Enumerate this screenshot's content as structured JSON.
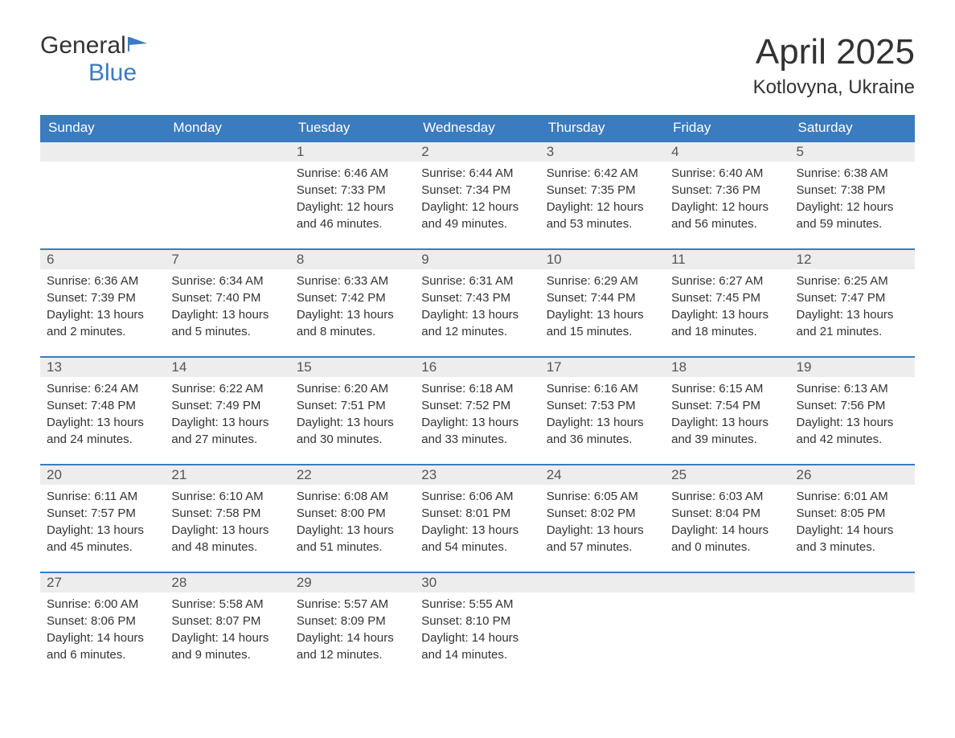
{
  "logo": {
    "text_general": "General",
    "text_blue": "Blue",
    "icon_color": "#3b7bbf"
  },
  "title": "April 2025",
  "location": "Kotlovyna, Ukraine",
  "header_bg_color": "#3b7bbf",
  "header_text_color": "#ffffff",
  "day_number_bg": "#ededed",
  "border_color": "#3b7bbf",
  "days_of_week": [
    "Sunday",
    "Monday",
    "Tuesday",
    "Wednesday",
    "Thursday",
    "Friday",
    "Saturday"
  ],
  "weeks": [
    [
      {
        "empty": true
      },
      {
        "empty": true
      },
      {
        "day": "1",
        "sunrise": "Sunrise: 6:46 AM",
        "sunset": "Sunset: 7:33 PM",
        "daylight1": "Daylight: 12 hours",
        "daylight2": "and 46 minutes."
      },
      {
        "day": "2",
        "sunrise": "Sunrise: 6:44 AM",
        "sunset": "Sunset: 7:34 PM",
        "daylight1": "Daylight: 12 hours",
        "daylight2": "and 49 minutes."
      },
      {
        "day": "3",
        "sunrise": "Sunrise: 6:42 AM",
        "sunset": "Sunset: 7:35 PM",
        "daylight1": "Daylight: 12 hours",
        "daylight2": "and 53 minutes."
      },
      {
        "day": "4",
        "sunrise": "Sunrise: 6:40 AM",
        "sunset": "Sunset: 7:36 PM",
        "daylight1": "Daylight: 12 hours",
        "daylight2": "and 56 minutes."
      },
      {
        "day": "5",
        "sunrise": "Sunrise: 6:38 AM",
        "sunset": "Sunset: 7:38 PM",
        "daylight1": "Daylight: 12 hours",
        "daylight2": "and 59 minutes."
      }
    ],
    [
      {
        "day": "6",
        "sunrise": "Sunrise: 6:36 AM",
        "sunset": "Sunset: 7:39 PM",
        "daylight1": "Daylight: 13 hours",
        "daylight2": "and 2 minutes."
      },
      {
        "day": "7",
        "sunrise": "Sunrise: 6:34 AM",
        "sunset": "Sunset: 7:40 PM",
        "daylight1": "Daylight: 13 hours",
        "daylight2": "and 5 minutes."
      },
      {
        "day": "8",
        "sunrise": "Sunrise: 6:33 AM",
        "sunset": "Sunset: 7:42 PM",
        "daylight1": "Daylight: 13 hours",
        "daylight2": "and 8 minutes."
      },
      {
        "day": "9",
        "sunrise": "Sunrise: 6:31 AM",
        "sunset": "Sunset: 7:43 PM",
        "daylight1": "Daylight: 13 hours",
        "daylight2": "and 12 minutes."
      },
      {
        "day": "10",
        "sunrise": "Sunrise: 6:29 AM",
        "sunset": "Sunset: 7:44 PM",
        "daylight1": "Daylight: 13 hours",
        "daylight2": "and 15 minutes."
      },
      {
        "day": "11",
        "sunrise": "Sunrise: 6:27 AM",
        "sunset": "Sunset: 7:45 PM",
        "daylight1": "Daylight: 13 hours",
        "daylight2": "and 18 minutes."
      },
      {
        "day": "12",
        "sunrise": "Sunrise: 6:25 AM",
        "sunset": "Sunset: 7:47 PM",
        "daylight1": "Daylight: 13 hours",
        "daylight2": "and 21 minutes."
      }
    ],
    [
      {
        "day": "13",
        "sunrise": "Sunrise: 6:24 AM",
        "sunset": "Sunset: 7:48 PM",
        "daylight1": "Daylight: 13 hours",
        "daylight2": "and 24 minutes."
      },
      {
        "day": "14",
        "sunrise": "Sunrise: 6:22 AM",
        "sunset": "Sunset: 7:49 PM",
        "daylight1": "Daylight: 13 hours",
        "daylight2": "and 27 minutes."
      },
      {
        "day": "15",
        "sunrise": "Sunrise: 6:20 AM",
        "sunset": "Sunset: 7:51 PM",
        "daylight1": "Daylight: 13 hours",
        "daylight2": "and 30 minutes."
      },
      {
        "day": "16",
        "sunrise": "Sunrise: 6:18 AM",
        "sunset": "Sunset: 7:52 PM",
        "daylight1": "Daylight: 13 hours",
        "daylight2": "and 33 minutes."
      },
      {
        "day": "17",
        "sunrise": "Sunrise: 6:16 AM",
        "sunset": "Sunset: 7:53 PM",
        "daylight1": "Daylight: 13 hours",
        "daylight2": "and 36 minutes."
      },
      {
        "day": "18",
        "sunrise": "Sunrise: 6:15 AM",
        "sunset": "Sunset: 7:54 PM",
        "daylight1": "Daylight: 13 hours",
        "daylight2": "and 39 minutes."
      },
      {
        "day": "19",
        "sunrise": "Sunrise: 6:13 AM",
        "sunset": "Sunset: 7:56 PM",
        "daylight1": "Daylight: 13 hours",
        "daylight2": "and 42 minutes."
      }
    ],
    [
      {
        "day": "20",
        "sunrise": "Sunrise: 6:11 AM",
        "sunset": "Sunset: 7:57 PM",
        "daylight1": "Daylight: 13 hours",
        "daylight2": "and 45 minutes."
      },
      {
        "day": "21",
        "sunrise": "Sunrise: 6:10 AM",
        "sunset": "Sunset: 7:58 PM",
        "daylight1": "Daylight: 13 hours",
        "daylight2": "and 48 minutes."
      },
      {
        "day": "22",
        "sunrise": "Sunrise: 6:08 AM",
        "sunset": "Sunset: 8:00 PM",
        "daylight1": "Daylight: 13 hours",
        "daylight2": "and 51 minutes."
      },
      {
        "day": "23",
        "sunrise": "Sunrise: 6:06 AM",
        "sunset": "Sunset: 8:01 PM",
        "daylight1": "Daylight: 13 hours",
        "daylight2": "and 54 minutes."
      },
      {
        "day": "24",
        "sunrise": "Sunrise: 6:05 AM",
        "sunset": "Sunset: 8:02 PM",
        "daylight1": "Daylight: 13 hours",
        "daylight2": "and 57 minutes."
      },
      {
        "day": "25",
        "sunrise": "Sunrise: 6:03 AM",
        "sunset": "Sunset: 8:04 PM",
        "daylight1": "Daylight: 14 hours",
        "daylight2": "and 0 minutes."
      },
      {
        "day": "26",
        "sunrise": "Sunrise: 6:01 AM",
        "sunset": "Sunset: 8:05 PM",
        "daylight1": "Daylight: 14 hours",
        "daylight2": "and 3 minutes."
      }
    ],
    [
      {
        "day": "27",
        "sunrise": "Sunrise: 6:00 AM",
        "sunset": "Sunset: 8:06 PM",
        "daylight1": "Daylight: 14 hours",
        "daylight2": "and 6 minutes."
      },
      {
        "day": "28",
        "sunrise": "Sunrise: 5:58 AM",
        "sunset": "Sunset: 8:07 PM",
        "daylight1": "Daylight: 14 hours",
        "daylight2": "and 9 minutes."
      },
      {
        "day": "29",
        "sunrise": "Sunrise: 5:57 AM",
        "sunset": "Sunset: 8:09 PM",
        "daylight1": "Daylight: 14 hours",
        "daylight2": "and 12 minutes."
      },
      {
        "day": "30",
        "sunrise": "Sunrise: 5:55 AM",
        "sunset": "Sunset: 8:10 PM",
        "daylight1": "Daylight: 14 hours",
        "daylight2": "and 14 minutes."
      },
      {
        "empty": true
      },
      {
        "empty": true
      },
      {
        "empty": true
      }
    ]
  ]
}
